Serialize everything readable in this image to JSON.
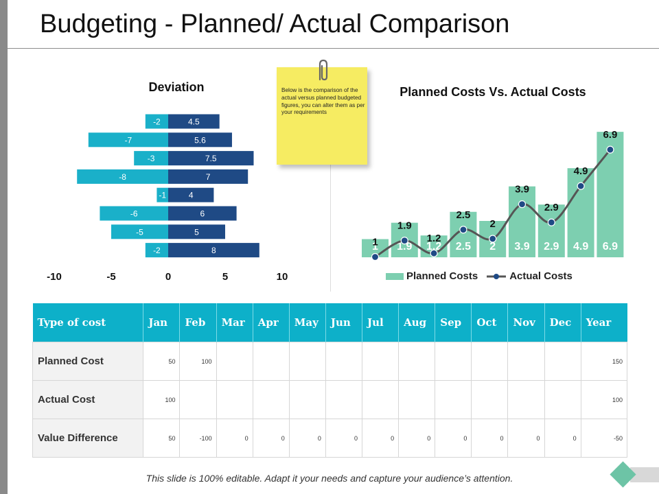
{
  "title": "Budgeting - Planned/ Actual Comparison",
  "note": {
    "text": "Below is the comparison of the actual versus planned budgeted figures, you can alter them as per your requirements"
  },
  "colors": {
    "negative_bar": "#1ab0c9",
    "positive_bar": "#1f4a85",
    "planned_bar": "#7dcfb0",
    "actual_line": "#555555",
    "actual_marker": "#1f4a85",
    "table_header": "#0db0c9",
    "note_paper": "#f6ec62"
  },
  "chart_data": [
    {
      "type": "bar",
      "orientation": "horizontal",
      "stacked": "diverging",
      "title": "Deviation",
      "xlim": [
        -10,
        10
      ],
      "xticks": [
        -10,
        -5,
        0,
        5,
        10
      ],
      "xtick_labels": [
        "-10",
        "-5",
        "0",
        "5",
        "10"
      ],
      "series": [
        {
          "values": [
            -2,
            -7,
            -3,
            -8,
            -1,
            -6,
            -5,
            -2
          ],
          "color": "#1ab0c9"
        },
        {
          "values": [
            4.5,
            5.6,
            7.5,
            7,
            4,
            6,
            5,
            8
          ],
          "color": "#1f4a85"
        }
      ]
    },
    {
      "type": "bar",
      "title": "Planned Costs Vs. Actual Costs",
      "ylim": [
        0,
        7.4
      ],
      "series": [
        {
          "name": "Planned Costs",
          "type": "bar",
          "values": [
            1,
            1.9,
            1.2,
            2.5,
            2,
            3.9,
            2.9,
            4.9,
            6.9
          ],
          "color": "#7dcfb0"
        },
        {
          "name": "Actual Costs",
          "type": "line",
          "values": [
            1,
            1.9,
            1.2,
            2.5,
            2,
            3.9,
            2.9,
            4.9,
            6.9
          ],
          "color": "#555555"
        }
      ],
      "legend": "bottom"
    }
  ],
  "table": {
    "headers": [
      "Type of cost",
      "Jan",
      "Feb",
      "Mar",
      "Apr",
      "May",
      "Jun",
      "Jul",
      "Aug",
      "Sep",
      "Oct",
      "Nov",
      "Dec",
      "Year"
    ],
    "rows": [
      {
        "label": "Planned Cost",
        "cells": [
          "50",
          "100",
          "",
          "",
          "",
          "",
          "",
          "",
          "",
          "",
          "",
          "",
          "150"
        ]
      },
      {
        "label": "Actual Cost",
        "cells": [
          "100",
          "",
          "",
          "",
          "",
          "",
          "",
          "",
          "",
          "",
          "",
          "",
          "100"
        ]
      },
      {
        "label": "Value Difference",
        "cells": [
          "50",
          "-100",
          "0",
          "0",
          "0",
          "0",
          "0",
          "0",
          "0",
          "0",
          "0",
          "0",
          "-50"
        ]
      }
    ]
  },
  "footer": "This slide is 100% editable. Adapt it your needs and capture your audience’s attention."
}
